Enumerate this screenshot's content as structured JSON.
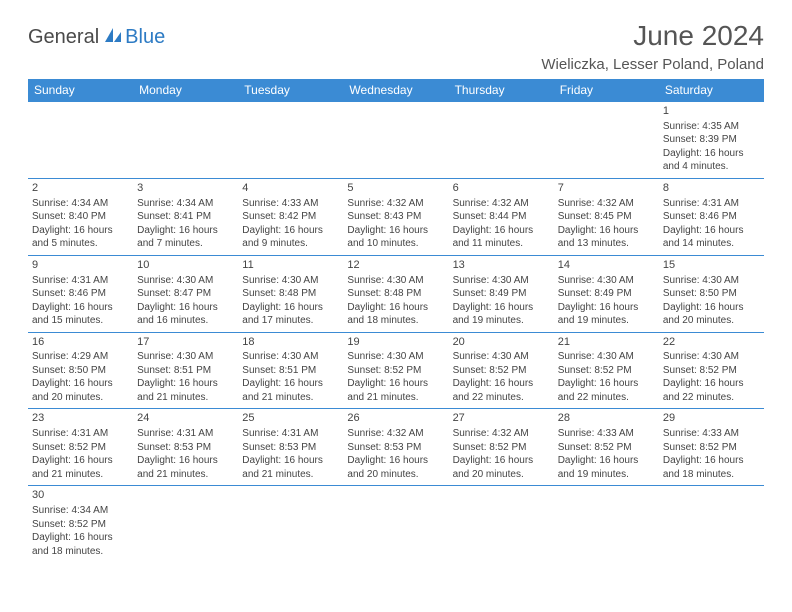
{
  "logo": {
    "part1": "General",
    "part2": "Blue"
  },
  "title": "June 2024",
  "location": "Wieliczka, Lesser Poland, Poland",
  "colors": {
    "header_bg": "#3b8bd4",
    "header_text": "#ffffff",
    "border": "#3b8bd4",
    "text": "#444444",
    "logo_gray": "#4a4a4a",
    "logo_blue": "#2d7bc4"
  },
  "weekdays": [
    "Sunday",
    "Monday",
    "Tuesday",
    "Wednesday",
    "Thursday",
    "Friday",
    "Saturday"
  ],
  "days": {
    "1": {
      "sunrise": "4:35 AM",
      "sunset": "8:39 PM",
      "daylight": "16 hours and 4 minutes."
    },
    "2": {
      "sunrise": "4:34 AM",
      "sunset": "8:40 PM",
      "daylight": "16 hours and 5 minutes."
    },
    "3": {
      "sunrise": "4:34 AM",
      "sunset": "8:41 PM",
      "daylight": "16 hours and 7 minutes."
    },
    "4": {
      "sunrise": "4:33 AM",
      "sunset": "8:42 PM",
      "daylight": "16 hours and 9 minutes."
    },
    "5": {
      "sunrise": "4:32 AM",
      "sunset": "8:43 PM",
      "daylight": "16 hours and 10 minutes."
    },
    "6": {
      "sunrise": "4:32 AM",
      "sunset": "8:44 PM",
      "daylight": "16 hours and 11 minutes."
    },
    "7": {
      "sunrise": "4:32 AM",
      "sunset": "8:45 PM",
      "daylight": "16 hours and 13 minutes."
    },
    "8": {
      "sunrise": "4:31 AM",
      "sunset": "8:46 PM",
      "daylight": "16 hours and 14 minutes."
    },
    "9": {
      "sunrise": "4:31 AM",
      "sunset": "8:46 PM",
      "daylight": "16 hours and 15 minutes."
    },
    "10": {
      "sunrise": "4:30 AM",
      "sunset": "8:47 PM",
      "daylight": "16 hours and 16 minutes."
    },
    "11": {
      "sunrise": "4:30 AM",
      "sunset": "8:48 PM",
      "daylight": "16 hours and 17 minutes."
    },
    "12": {
      "sunrise": "4:30 AM",
      "sunset": "8:48 PM",
      "daylight": "16 hours and 18 minutes."
    },
    "13": {
      "sunrise": "4:30 AM",
      "sunset": "8:49 PM",
      "daylight": "16 hours and 19 minutes."
    },
    "14": {
      "sunrise": "4:30 AM",
      "sunset": "8:49 PM",
      "daylight": "16 hours and 19 minutes."
    },
    "15": {
      "sunrise": "4:30 AM",
      "sunset": "8:50 PM",
      "daylight": "16 hours and 20 minutes."
    },
    "16": {
      "sunrise": "4:29 AM",
      "sunset": "8:50 PM",
      "daylight": "16 hours and 20 minutes."
    },
    "17": {
      "sunrise": "4:30 AM",
      "sunset": "8:51 PM",
      "daylight": "16 hours and 21 minutes."
    },
    "18": {
      "sunrise": "4:30 AM",
      "sunset": "8:51 PM",
      "daylight": "16 hours and 21 minutes."
    },
    "19": {
      "sunrise": "4:30 AM",
      "sunset": "8:52 PM",
      "daylight": "16 hours and 21 minutes."
    },
    "20": {
      "sunrise": "4:30 AM",
      "sunset": "8:52 PM",
      "daylight": "16 hours and 22 minutes."
    },
    "21": {
      "sunrise": "4:30 AM",
      "sunset": "8:52 PM",
      "daylight": "16 hours and 22 minutes."
    },
    "22": {
      "sunrise": "4:30 AM",
      "sunset": "8:52 PM",
      "daylight": "16 hours and 22 minutes."
    },
    "23": {
      "sunrise": "4:31 AM",
      "sunset": "8:52 PM",
      "daylight": "16 hours and 21 minutes."
    },
    "24": {
      "sunrise": "4:31 AM",
      "sunset": "8:53 PM",
      "daylight": "16 hours and 21 minutes."
    },
    "25": {
      "sunrise": "4:31 AM",
      "sunset": "8:53 PM",
      "daylight": "16 hours and 21 minutes."
    },
    "26": {
      "sunrise": "4:32 AM",
      "sunset": "8:53 PM",
      "daylight": "16 hours and 20 minutes."
    },
    "27": {
      "sunrise": "4:32 AM",
      "sunset": "8:52 PM",
      "daylight": "16 hours and 20 minutes."
    },
    "28": {
      "sunrise": "4:33 AM",
      "sunset": "8:52 PM",
      "daylight": "16 hours and 19 minutes."
    },
    "29": {
      "sunrise": "4:33 AM",
      "sunset": "8:52 PM",
      "daylight": "16 hours and 18 minutes."
    },
    "30": {
      "sunrise": "4:34 AM",
      "sunset": "8:52 PM",
      "daylight": "16 hours and 18 minutes."
    }
  },
  "labels": {
    "sunrise": "Sunrise:",
    "sunset": "Sunset:",
    "daylight": "Daylight:"
  },
  "grid": [
    [
      null,
      null,
      null,
      null,
      null,
      null,
      "1"
    ],
    [
      "2",
      "3",
      "4",
      "5",
      "6",
      "7",
      "8"
    ],
    [
      "9",
      "10",
      "11",
      "12",
      "13",
      "14",
      "15"
    ],
    [
      "16",
      "17",
      "18",
      "19",
      "20",
      "21",
      "22"
    ],
    [
      "23",
      "24",
      "25",
      "26",
      "27",
      "28",
      "29"
    ],
    [
      "30",
      null,
      null,
      null,
      null,
      null,
      null
    ]
  ]
}
